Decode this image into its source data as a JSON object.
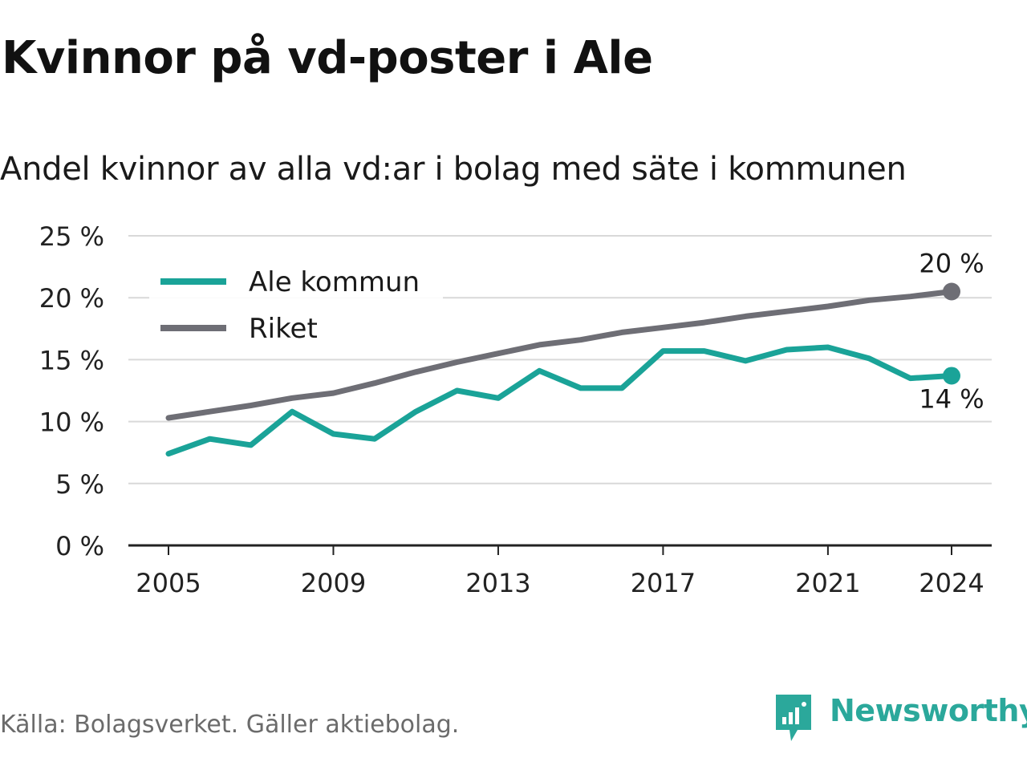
{
  "title": "Kvinnor på vd-poster i Ale",
  "subtitle": "Andel kvinnor av alla vd:ar i bolag med säte i kommunen",
  "source": "Källa: Bolagsverket. Gäller aktiebolag.",
  "brand": "Newsworthy",
  "colors": {
    "ale": "#1aa398",
    "riket": "#6e6e75",
    "grid": "#d9d9d9",
    "axis": "#222222"
  },
  "chart_data": {
    "type": "line",
    "x": [
      2005,
      2006,
      2007,
      2008,
      2009,
      2010,
      2011,
      2012,
      2013,
      2014,
      2015,
      2016,
      2017,
      2018,
      2019,
      2020,
      2021,
      2022,
      2023,
      2024
    ],
    "series": [
      {
        "name": "Ale kommun",
        "color": "#1aa398",
        "values": [
          7.4,
          8.6,
          8.1,
          10.8,
          9.0,
          8.6,
          10.8,
          12.5,
          11.9,
          14.1,
          12.7,
          12.7,
          15.7,
          15.7,
          14.9,
          15.8,
          16.0,
          15.1,
          13.5,
          13.7
        ],
        "end_label": "14 %"
      },
      {
        "name": "Riket",
        "color": "#6e6e75",
        "values": [
          10.3,
          10.8,
          11.3,
          11.9,
          12.3,
          13.1,
          14.0,
          14.8,
          15.5,
          16.2,
          16.6,
          17.2,
          17.6,
          18.0,
          18.5,
          18.9,
          19.3,
          19.8,
          20.1,
          20.5
        ],
        "end_label": "20 %"
      }
    ],
    "ylim": [
      0,
      25
    ],
    "yticks": [
      0,
      5,
      10,
      15,
      20,
      25
    ],
    "ytick_labels": [
      "0 %",
      "5 %",
      "10 %",
      "15 %",
      "20 %",
      "25 %"
    ],
    "xticks": [
      2005,
      2009,
      2013,
      2017,
      2021,
      2024
    ],
    "xtick_labels": [
      "2005",
      "2009",
      "2013",
      "2017",
      "2021",
      "2024"
    ],
    "grid": true,
    "legend": "top-left"
  }
}
